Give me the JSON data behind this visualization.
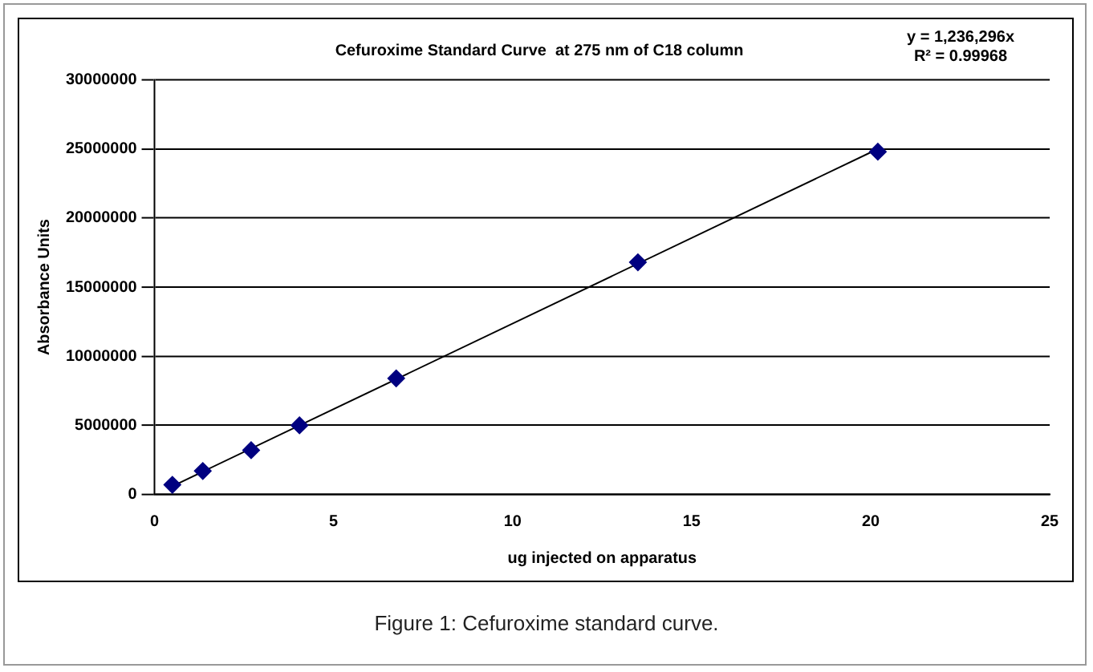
{
  "chart_data": {
    "type": "scatter",
    "title": "Cefuroxime Standard Curve  at 275 nm of C18 column",
    "xlabel": "ug injected on apparatus",
    "ylabel": "Absorbance Units",
    "series": [
      {
        "color": "#000080",
        "marker": "diamond",
        "x": [
          0.5,
          1.35,
          2.7,
          4.05,
          6.75,
          13.5,
          20.2
        ],
        "values": [
          700000,
          1700000,
          3200000,
          5000000,
          8400000,
          16800000,
          24800000
        ]
      },
      {
        "type": "line",
        "color": "#000000",
        "marker": "none",
        "x": [
          0.5,
          20.2
        ],
        "values": [
          600000,
          25000000
        ]
      }
    ],
    "xlim": [
      0,
      25
    ],
    "xticks": [
      0,
      5,
      10,
      15,
      20,
      25
    ],
    "ylim": [
      0,
      30000000
    ],
    "yticks": [
      0,
      5000000,
      10000000,
      15000000,
      20000000,
      25000000,
      30000000
    ],
    "grid": "y",
    "legend": false,
    "annotations": [
      "y = 1,236,296x",
      "R² = 0.99968",
      "Figure 1: Cefuroxime standard curve."
    ]
  }
}
